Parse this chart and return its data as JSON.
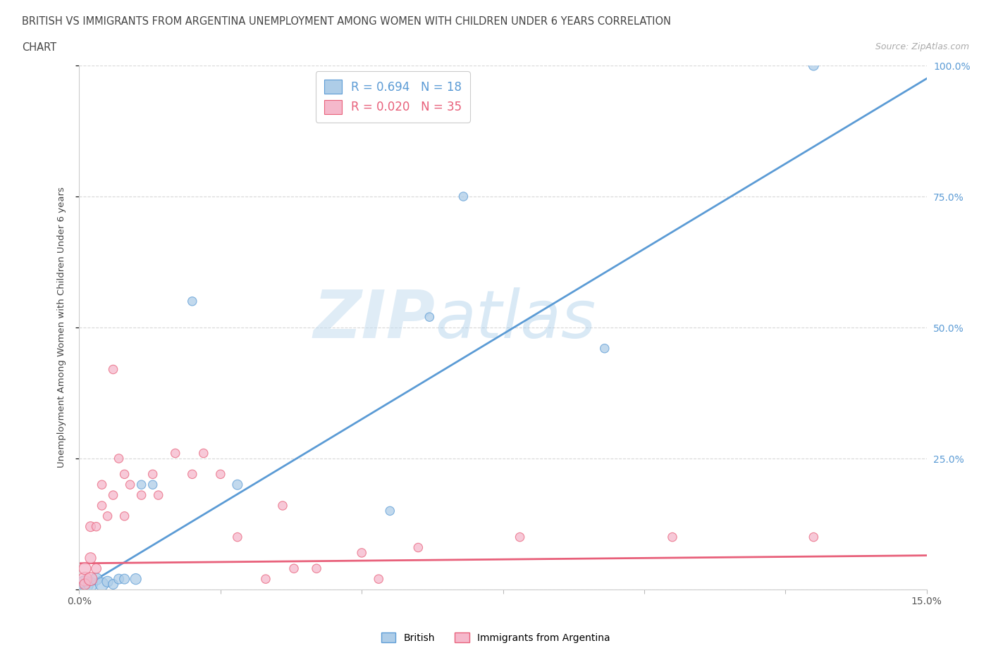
{
  "title_line1": "BRITISH VS IMMIGRANTS FROM ARGENTINA UNEMPLOYMENT AMONG WOMEN WITH CHILDREN UNDER 6 YEARS CORRELATION",
  "title_line2": "CHART",
  "source": "Source: ZipAtlas.com",
  "ylabel": "Unemployment Among Women with Children Under 6 years",
  "legend_bottom": [
    "British",
    "Immigrants from Argentina"
  ],
  "r_british": 0.694,
  "n_british": 18,
  "r_argentina": 0.02,
  "n_argentina": 35,
  "color_british": "#aecde8",
  "color_argentina": "#f5b8cb",
  "line_color_british": "#5b9bd5",
  "line_color_argentina": "#e8607a",
  "xlim": [
    0.0,
    0.15
  ],
  "ylim": [
    0.0,
    1.0
  ],
  "xticks": [
    0.0,
    0.025,
    0.05,
    0.075,
    0.1,
    0.125,
    0.15
  ],
  "xticklabels": [
    "0.0%",
    "",
    "",
    "",
    "",
    "",
    "15.0%"
  ],
  "yticks_right": [
    0.0,
    0.25,
    0.5,
    0.75,
    1.0
  ],
  "yticklabels_right": [
    "",
    "25.0%",
    "50.0%",
    "75.0%",
    "100.0%"
  ],
  "british_x": [
    0.001,
    0.002,
    0.003,
    0.004,
    0.005,
    0.006,
    0.007,
    0.008,
    0.01,
    0.011,
    0.013,
    0.02,
    0.028,
    0.055,
    0.062,
    0.068,
    0.093,
    0.13
  ],
  "british_y": [
    0.01,
    0.01,
    0.02,
    0.01,
    0.015,
    0.01,
    0.02,
    0.02,
    0.02,
    0.2,
    0.2,
    0.55,
    0.2,
    0.15,
    0.52,
    0.75,
    0.46,
    1.0
  ],
  "british_s": [
    300,
    200,
    150,
    180,
    120,
    100,
    100,
    100,
    120,
    80,
    80,
    80,
    100,
    80,
    80,
    80,
    80,
    100
  ],
  "argentina_x": [
    0.001,
    0.001,
    0.001,
    0.002,
    0.002,
    0.002,
    0.003,
    0.003,
    0.004,
    0.004,
    0.005,
    0.006,
    0.006,
    0.007,
    0.008,
    0.008,
    0.009,
    0.011,
    0.013,
    0.014,
    0.017,
    0.02,
    0.022,
    0.025,
    0.028,
    0.033,
    0.036,
    0.038,
    0.042,
    0.05,
    0.053,
    0.06,
    0.078,
    0.105,
    0.13
  ],
  "argentina_y": [
    0.02,
    0.04,
    0.01,
    0.02,
    0.06,
    0.12,
    0.04,
    0.12,
    0.16,
    0.2,
    0.14,
    0.18,
    0.42,
    0.25,
    0.22,
    0.14,
    0.2,
    0.18,
    0.22,
    0.18,
    0.26,
    0.22,
    0.26,
    0.22,
    0.1,
    0.02,
    0.16,
    0.04,
    0.04,
    0.07,
    0.02,
    0.08,
    0.1,
    0.1,
    0.1
  ],
  "argentina_s": [
    200,
    150,
    120,
    180,
    120,
    100,
    100,
    80,
    80,
    80,
    80,
    80,
    80,
    80,
    80,
    80,
    80,
    80,
    80,
    80,
    80,
    80,
    80,
    80,
    80,
    80,
    80,
    80,
    80,
    80,
    80,
    80,
    80,
    80,
    80
  ],
  "trend_british_slope": 6.5,
  "trend_british_intercept": 0.0,
  "trend_argentina_slope": 0.1,
  "trend_argentina_intercept": 0.05,
  "watermark_zip": "ZIP",
  "watermark_atlas": "atlas",
  "background_color": "#ffffff",
  "grid_color": "#d8d8d8"
}
